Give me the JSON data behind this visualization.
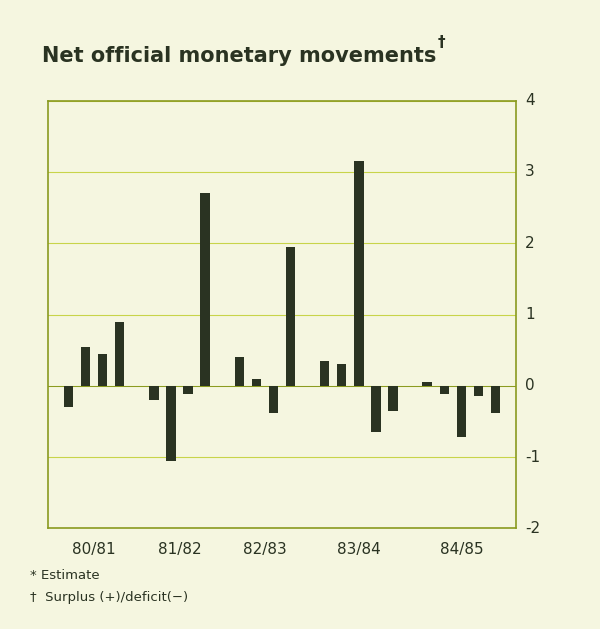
{
  "title": "Net official monetary movements",
  "title_dagger": "†",
  "bar_values": [
    -0.3,
    0.55,
    0.45,
    0.9,
    -0.2,
    -1.05,
    -0.12,
    2.7,
    0.4,
    0.1,
    -0.38,
    1.95,
    0.35,
    0.3,
    3.15,
    -0.65,
    -0.35,
    0.05,
    -0.12,
    -0.72,
    -0.15,
    -0.38
  ],
  "bar_positions": [
    1,
    2,
    3,
    4,
    6,
    7,
    8,
    9,
    11,
    12,
    13,
    14,
    16,
    17,
    18,
    19,
    20,
    22,
    23,
    24,
    25,
    26
  ],
  "x_tick_positions": [
    2.5,
    7.5,
    12.5,
    18.0,
    24.0
  ],
  "x_tick_labels": [
    "80/81",
    "81/82",
    "82/83",
    "83/84",
    "84/85"
  ],
  "ylim": [
    -2,
    4
  ],
  "yticks": [
    -1,
    0,
    1,
    2,
    3
  ],
  "ytick_labels": [
    "-1",
    "0",
    "1",
    "2",
    "3"
  ],
  "ytick_4": "4",
  "bar_color": "#2a3322",
  "background_color": "#f5f6e0",
  "border_color": "#8a9a20",
  "grid_color": "#c8d44a",
  "grid_linewidth": 0.8,
  "footnote1": "* Estimate",
  "footnote2": "†  Surplus (+)/deficit(−)"
}
